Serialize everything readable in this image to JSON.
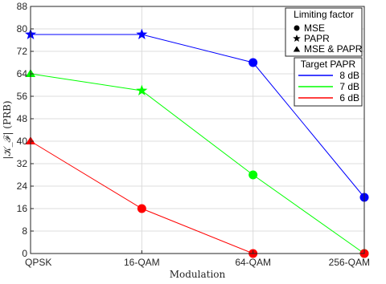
{
  "chart_data": {
    "type": "line",
    "categories": [
      "QPSK",
      "16-QAM",
      "64-QAM",
      "256-QAM"
    ],
    "xlabel": "Modulation",
    "ylabel": "|𝒦_ℱ| (PRB)",
    "ylim": [
      0,
      88
    ],
    "yticks": [
      0,
      8,
      16,
      24,
      32,
      40,
      48,
      56,
      64,
      72,
      80,
      88
    ],
    "grid": true,
    "series": [
      {
        "name": "8 dB",
        "color": "#0000ff",
        "values": [
          78,
          78,
          68,
          20
        ],
        "markers": [
          "star",
          "star",
          "circle",
          "circle"
        ]
      },
      {
        "name": "7 dB",
        "color": "#00ff00",
        "values": [
          64,
          58,
          28,
          0
        ],
        "markers": [
          "triangle",
          "star",
          "circle",
          "circle"
        ]
      },
      {
        "name": "6 dB",
        "color": "#ff0000",
        "values": [
          40,
          16,
          0,
          0
        ],
        "markers": [
          "triangle",
          "circle",
          "circle",
          "circle"
        ]
      }
    ],
    "legend_limiting": {
      "title": "Limiting factor",
      "entries": [
        {
          "label": "MSE",
          "marker": "circle"
        },
        {
          "label": "PAPR",
          "marker": "star"
        },
        {
          "label": "MSE & PAPR",
          "marker": "triangle"
        }
      ],
      "placement": "top-right"
    },
    "legend_papr": {
      "title": "Target PAPR",
      "placement": "top-right"
    }
  }
}
